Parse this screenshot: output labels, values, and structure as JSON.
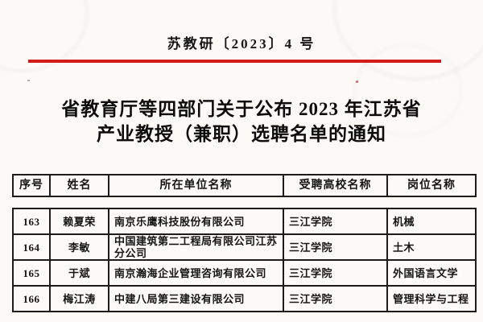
{
  "colors": {
    "rule_red": "#d31b1b",
    "paper": "#fbfaf7",
    "table_border": "#1c1c1c",
    "text": "#111111"
  },
  "doc_number": "苏教研〔2023〕4 号",
  "title": {
    "line1": "省教育厅等四部门关于公布 2023 年江苏省",
    "line2": "产业教授（兼职）选聘名单的通知"
  },
  "table": {
    "columns": [
      "序号",
      "姓名",
      "所在单位名称",
      "受聘高校名称",
      "岗位名称"
    ],
    "rows": [
      {
        "no": "163",
        "name": "赖夏荣",
        "unit": "南京乐鹰科技股份有限公司",
        "university": "三江学院",
        "position": "机械"
      },
      {
        "no": "164",
        "name": "李敏",
        "unit": "中国建筑第二工程局有限公司江苏分公司",
        "university": "三江学院",
        "position": "土木"
      },
      {
        "no": "165",
        "name": "于斌",
        "unit": "南京瀚海企业管理咨询有限公司",
        "university": "三江学院",
        "position": "外国语言文学"
      },
      {
        "no": "166",
        "name": "梅江涛",
        "unit": "中建八局第三建设有限公司",
        "university": "三江学院",
        "position": "管理科学与工程"
      }
    ]
  }
}
